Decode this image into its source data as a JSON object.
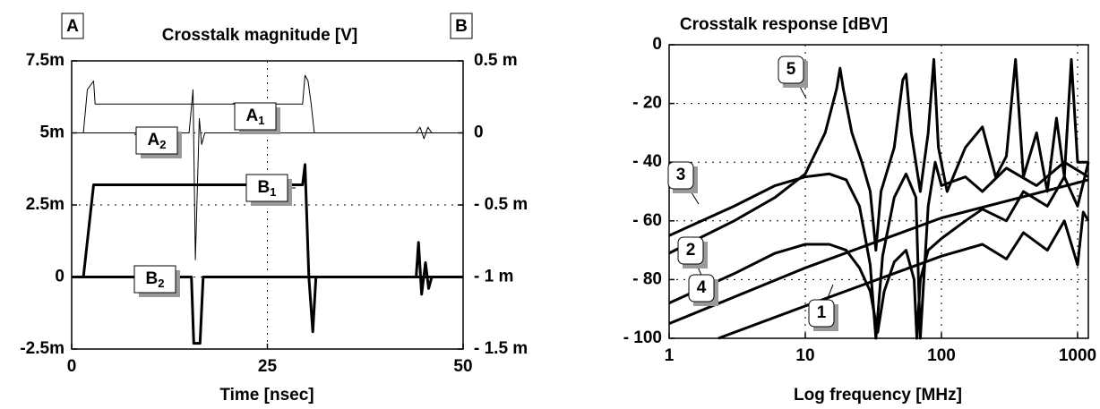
{
  "chart_data": [
    {
      "type": "line",
      "title": "Crosstalk magnitude [V]",
      "x_label": "Time [nsec]",
      "y_axis_label": "A",
      "y2_axis_label": "B",
      "xlim": [
        0,
        50
      ],
      "xticks": [
        0,
        25,
        50
      ],
      "ylim": [
        -0.0025,
        0.0075
      ],
      "yticks": [
        {
          "value": -0.0025,
          "label": "-2.5m"
        },
        0,
        {
          "value": 0.0025,
          "label": "2.5m"
        },
        {
          "value": 0.005,
          "label": "5m"
        },
        {
          "value": 0.0075,
          "label": "7.5m"
        }
      ],
      "y2lim": [
        -0.0015,
        0.0005
      ],
      "y2ticks": [
        {
          "value": -0.0015,
          "label": "- 1.5 m"
        },
        {
          "value": -0.001,
          "label": "- 1 m"
        },
        {
          "value": -0.0005,
          "label": "- 0.5 m"
        },
        0,
        {
          "value": 0.0005,
          "label": "0.5 m"
        }
      ],
      "grid": true,
      "series": [
        {
          "name": "A1",
          "color": "#000000",
          "line_width": 1,
          "x": [
            0,
            1.5,
            2,
            2.8,
            3,
            29.5,
            29.8,
            30.2,
            30.6,
            31,
            50
          ],
          "values": [
            0.005,
            0.005,
            0.0065,
            0.0068,
            0.006,
            0.006,
            0.007,
            0.0068,
            0.006,
            0.005,
            0.005
          ]
        },
        {
          "name": "A2",
          "color": "#000000",
          "line_width": 1,
          "x": [
            0,
            15,
            15.5,
            15.8,
            16.3,
            16.6,
            17,
            44,
            44.5,
            45,
            45.5,
            46,
            50
          ],
          "values": [
            0.005,
            0.005,
            0.0065,
            0.0006,
            0.0055,
            0.0046,
            0.005,
            0.005,
            0.0052,
            0.0048,
            0.0052,
            0.005,
            0.005
          ]
        },
        {
          "name": "B1",
          "color": "#000000",
          "line_width": 3,
          "x": [
            0,
            1.5,
            2.8,
            29.5,
            29.8,
            30.3,
            30.8,
            31.2,
            50
          ],
          "values": [
            0,
            0,
            0.0032,
            0.0032,
            0.0039,
            0,
            -0.0019,
            0,
            0
          ]
        },
        {
          "name": "B2",
          "color": "#000000",
          "line_width": 3,
          "x": [
            0,
            15.3,
            15.6,
            16.4,
            16.8,
            44,
            44.3,
            44.7,
            45.2,
            45.6,
            46,
            50
          ],
          "values": [
            0,
            0,
            -0.0023,
            -0.0023,
            0,
            0,
            0.0012,
            -0.0006,
            0.0005,
            -0.0004,
            0,
            0
          ]
        }
      ]
    },
    {
      "type": "line",
      "title": "Crosstalk response [dBV]",
      "x_label": "Log frequency [MHz]",
      "xlim": [
        1,
        1200
      ],
      "xticks": [
        1,
        10,
        100,
        1000
      ],
      "xscale": "log",
      "ylim": [
        -100,
        0
      ],
      "yticks": [
        {
          "value": -100,
          "label": "- 100"
        },
        {
          "value": -80,
          "label": "- 80"
        },
        {
          "value": -60,
          "label": "- 60"
        },
        {
          "value": -40,
          "label": "- 40"
        },
        {
          "value": -20,
          "label": "- 20"
        },
        0
      ],
      "grid": true,
      "series": [
        {
          "name": "1",
          "color": "#000000",
          "line_width": 3,
          "x": [
            1,
            3,
            6,
            10,
            15,
            20,
            25,
            30,
            34,
            38,
            45,
            55,
            63,
            66,
            70,
            80,
            100,
            150,
            200,
            300,
            400,
            600,
            800,
            1000,
            1200
          ],
          "values": [
            -88,
            -78,
            -71,
            -68,
            -68,
            -70,
            -76,
            -84,
            -98,
            -84,
            -74,
            -70,
            -80,
            -100,
            -80,
            -70,
            -66,
            -60,
            -56,
            -60,
            -50,
            -55,
            -45,
            -55,
            -40
          ]
        },
        {
          "name": "2",
          "color": "#000000",
          "line_width": 3,
          "x": [
            2.3,
            10,
            100,
            200,
            300,
            400,
            600,
            800,
            1000,
            1100,
            1200
          ],
          "values": [
            -100,
            -89,
            -72,
            -68,
            -73,
            -64,
            -70,
            -60,
            -75,
            -57,
            -60
          ]
        },
        {
          "name": "3",
          "color": "#000000",
          "line_width": 3,
          "x": [
            1,
            3,
            6,
            10,
            15,
            20,
            25,
            30,
            33,
            37,
            45,
            55,
            65,
            70,
            80,
            90,
            100,
            150,
            200,
            300,
            500,
            800,
            1200
          ],
          "values": [
            -65,
            -55,
            -48,
            -45,
            -44,
            -46,
            -55,
            -75,
            -100,
            -72,
            -52,
            -44,
            -52,
            -100,
            -55,
            -40,
            -48,
            -45,
            -50,
            -42,
            -48,
            -40,
            -45
          ]
        },
        {
          "name": "4",
          "color": "#000000",
          "line_width": 3,
          "x": [
            1,
            10,
            100,
            1000,
            1200
          ],
          "values": [
            -95,
            -76,
            -59,
            -47,
            -46
          ]
        },
        {
          "name": "5",
          "color": "#000000",
          "line_width": 3,
          "x": [
            1,
            3,
            6,
            10,
            14,
            17,
            18,
            19,
            22,
            26,
            30,
            33,
            36,
            45,
            52,
            55,
            60,
            70,
            80,
            88,
            95,
            110,
            150,
            200,
            250,
            300,
            350,
            400,
            500,
            600,
            700,
            800,
            900,
            1000,
            1200
          ],
          "values": [
            -71,
            -60,
            -52,
            -44,
            -30,
            -15,
            -8,
            -15,
            -30,
            -40,
            -50,
            -70,
            -50,
            -35,
            -12,
            -10,
            -30,
            -50,
            -30,
            -5,
            -35,
            -50,
            -35,
            -28,
            -45,
            -38,
            -5,
            -45,
            -30,
            -50,
            -25,
            -45,
            -5,
            -40,
            -40
          ]
        }
      ]
    }
  ]
}
